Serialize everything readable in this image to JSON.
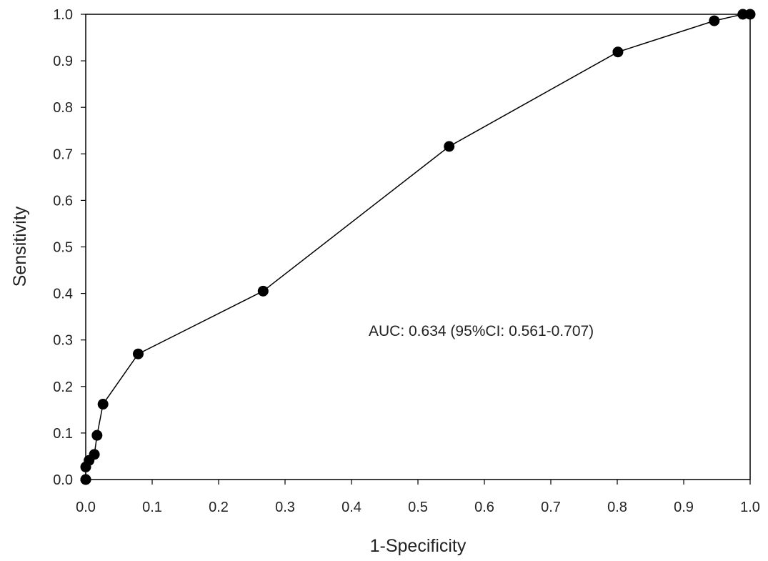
{
  "chart_data": {
    "type": "line",
    "xlabel": "1-Specificity",
    "ylabel": "Sensitivity",
    "xlim": [
      0,
      1
    ],
    "ylim": [
      0,
      1
    ],
    "xticks": [
      "0.0",
      "0.1",
      "0.2",
      "0.3",
      "0.4",
      "0.5",
      "0.6",
      "0.7",
      "0.8",
      "0.9",
      "1.0"
    ],
    "yticks": [
      "0.0",
      "0.1",
      "0.2",
      "0.3",
      "0.4",
      "0.5",
      "0.6",
      "0.7",
      "0.8",
      "0.9",
      "1.0"
    ],
    "grid": false,
    "annotation": "AUC: 0.634 (95%CI: 0.561-0.707)",
    "series": [
      {
        "x": [
          0.0,
          0.0,
          0.0,
          0.005,
          0.013,
          0.017,
          0.026,
          0.079,
          0.267,
          0.547,
          0.801,
          0.946,
          0.989,
          1.0
        ],
        "y": [
          0.0,
          0.0,
          0.027,
          0.041,
          0.054,
          0.095,
          0.162,
          0.27,
          0.405,
          0.716,
          0.919,
          0.986,
          1.0,
          1.0
        ],
        "color": "#000000"
      }
    ]
  }
}
